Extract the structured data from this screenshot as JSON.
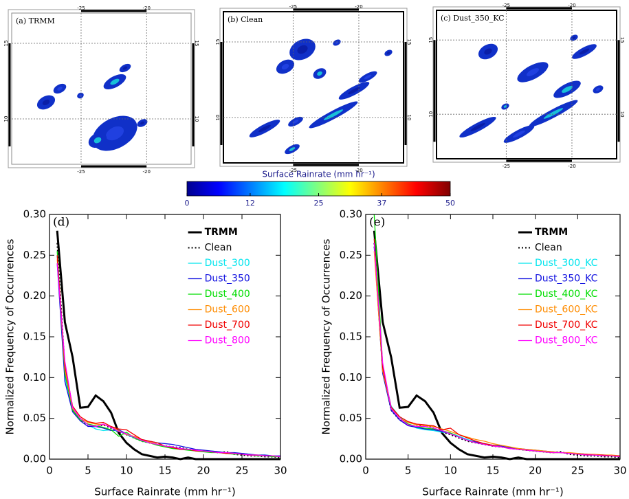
{
  "maps": [
    {
      "label": "(a) TRMM",
      "xlim": [
        -30.3,
        -16.6
      ],
      "ylim": [
        7,
        17
      ],
      "xticks": [
        -25,
        -20
      ],
      "yticks": [
        10,
        15
      ]
    },
    {
      "label": "(b) Clean",
      "xlim": [
        -30.3,
        -16.6
      ],
      "ylim": [
        7,
        17
      ],
      "xticks": [
        -25,
        -20
      ],
      "yticks": [
        10,
        15
      ]
    },
    {
      "label": "(c) Dust_350_KC",
      "xlim": [
        -30.3,
        -16.6
      ],
      "ylim": [
        7,
        17
      ],
      "xticks": [
        -25,
        -20
      ],
      "yticks": [
        10,
        15
      ]
    }
  ],
  "colorbar": {
    "label": "Surface Rainrate (mm hr⁻¹)",
    "lim": [
      0,
      50
    ],
    "ticks": [
      0,
      12,
      25,
      37,
      50
    ]
  },
  "chart_data": [
    {
      "type": "line",
      "panel": "(d)",
      "xlabel": "Surface Rainrate (mm hr⁻¹)",
      "ylabel": "Normalized Frequency of Occurrences",
      "xlim": [
        0,
        30
      ],
      "ylim": [
        0,
        0.3
      ],
      "xticks": [
        0,
        5,
        10,
        15,
        20,
        25,
        30
      ],
      "yticks": [
        {
          "value": 0,
          "label": "0.00"
        },
        {
          "value": 0.05,
          "label": "0.05"
        },
        {
          "value": 0.1,
          "label": "0.10"
        },
        {
          "value": 0.15,
          "label": "0.15"
        },
        {
          "value": 0.2,
          "label": "0.20"
        },
        {
          "value": 0.25,
          "label": "0.25"
        },
        {
          "value": 0.3,
          "label": "0.30"
        }
      ],
      "legend": "upper right",
      "x": [
        1,
        2,
        3,
        4,
        5,
        6,
        7,
        8,
        9,
        10,
        11,
        12,
        13,
        14,
        15,
        16,
        17,
        18,
        19,
        20,
        21,
        22,
        23,
        24,
        25,
        26,
        27,
        28,
        29,
        30
      ],
      "series": [
        {
          "name": "TRMM",
          "color": "#000000",
          "linewidth": 3,
          "style": "solid",
          "values": [
            0.28,
            0.168,
            0.125,
            0.063,
            0.064,
            0.078,
            0.071,
            0.057,
            0.032,
            0.02,
            0.012,
            0.006,
            0.004,
            0.002,
            0.003,
            0.002,
            0,
            0.002,
            0,
            0,
            0,
            0,
            0,
            0,
            0,
            0,
            0,
            0,
            0,
            0
          ]
        },
        {
          "name": "Clean",
          "color": "#000000",
          "linewidth": 2,
          "style": "dotted",
          "values": [
            0.265,
            0.11,
            0.06,
            0.048,
            0.042,
            0.04,
            0.042,
            0.038,
            0.033,
            0.03,
            0.026,
            0.022,
            0.02,
            0.018,
            0.016,
            0.015,
            0.014,
            0.012,
            0.011,
            0.01,
            0.009,
            0.008,
            0.009,
            0.006,
            0.005,
            0.004,
            0.004,
            0.003,
            0.003,
            0.002
          ]
        },
        {
          "name": "Dust_300",
          "color": "#00e5ee",
          "linewidth": 1.3,
          "style": "solid",
          "values": [
            0.25,
            0.1,
            0.062,
            0.05,
            0.042,
            0.037,
            0.035,
            0.036,
            0.034,
            0.03,
            0.026,
            0.022,
            0.02,
            0.018,
            0.016,
            0.015,
            0.013,
            0.012,
            0.011,
            0.01,
            0.01,
            0.009,
            0.008,
            0.007,
            0.007,
            0.006,
            0.005,
            0.005,
            0.004,
            0.003
          ]
        },
        {
          "name": "Dust_350",
          "color": "#1010e0",
          "linewidth": 1.3,
          "style": "solid",
          "values": [
            0.24,
            0.095,
            0.058,
            0.047,
            0.04,
            0.04,
            0.038,
            0.035,
            0.036,
            0.031,
            0.027,
            0.024,
            0.022,
            0.02,
            0.019,
            0.018,
            0.016,
            0.014,
            0.012,
            0.011,
            0.01,
            0.009,
            0.008,
            0.008,
            0.007,
            0.006,
            0.005,
            0.005,
            0.004,
            0.004
          ]
        },
        {
          "name": "Dust_400",
          "color": "#00dd00",
          "linewidth": 1.3,
          "style": "solid",
          "values": [
            0.255,
            0.105,
            0.06,
            0.048,
            0.043,
            0.041,
            0.039,
            0.036,
            0.028,
            0.033,
            0.026,
            0.022,
            0.02,
            0.017,
            0.015,
            0.013,
            0.012,
            0.011,
            0.01,
            0.009,
            0.008,
            0.008,
            0.007,
            0.006,
            0.006,
            0.005,
            0.004,
            0.004,
            0.003,
            0.003
          ]
        },
        {
          "name": "Dust_600",
          "color": "#ff8c00",
          "linewidth": 1.3,
          "style": "solid",
          "values": [
            0.245,
            0.11,
            0.062,
            0.05,
            0.045,
            0.043,
            0.042,
            0.04,
            0.035,
            0.03,
            0.028,
            0.024,
            0.021,
            0.018,
            0.016,
            0.014,
            0.013,
            0.012,
            0.011,
            0.01,
            0.009,
            0.008,
            0.008,
            0.007,
            0.006,
            0.005,
            0.005,
            0.004,
            0.004,
            0.003
          ]
        },
        {
          "name": "Dust_700",
          "color": "#f00000",
          "linewidth": 1.3,
          "style": "solid",
          "values": [
            0.25,
            0.115,
            0.065,
            0.052,
            0.046,
            0.044,
            0.045,
            0.04,
            0.037,
            0.036,
            0.03,
            0.024,
            0.022,
            0.02,
            0.016,
            0.014,
            0.012,
            0.012,
            0.01,
            0.01,
            0.009,
            0.008,
            0.007,
            0.007,
            0.006,
            0.005,
            0.005,
            0.004,
            0.004,
            0.003
          ]
        },
        {
          "name": "Dust_800",
          "color": "#ff00ff",
          "linewidth": 1.3,
          "style": "solid",
          "values": [
            0.24,
            0.12,
            0.063,
            0.05,
            0.042,
            0.04,
            0.043,
            0.039,
            0.034,
            0.031,
            0.027,
            0.023,
            0.02,
            0.018,
            0.016,
            0.015,
            0.013,
            0.012,
            0.011,
            0.01,
            0.009,
            0.008,
            0.008,
            0.007,
            0.006,
            0.005,
            0.005,
            0.004,
            0.004,
            0.003
          ]
        }
      ]
    },
    {
      "type": "line",
      "panel": "(e)",
      "xlabel": "Surface Rainrate (mm hr⁻¹)",
      "ylabel": "Normalized Frequency of Occurrences",
      "xlim": [
        0,
        30
      ],
      "ylim": [
        0,
        0.3
      ],
      "xticks": [
        0,
        5,
        10,
        15,
        20,
        25,
        30
      ],
      "yticks": [
        {
          "value": 0,
          "label": "0.00"
        },
        {
          "value": 0.05,
          "label": "0.05"
        },
        {
          "value": 0.1,
          "label": "0.10"
        },
        {
          "value": 0.15,
          "label": "0.15"
        },
        {
          "value": 0.2,
          "label": "0.20"
        },
        {
          "value": 0.25,
          "label": "0.25"
        },
        {
          "value": 0.3,
          "label": "0.30"
        }
      ],
      "legend": "upper right",
      "x": [
        1,
        2,
        3,
        4,
        5,
        6,
        7,
        8,
        9,
        10,
        11,
        12,
        13,
        14,
        15,
        16,
        17,
        18,
        19,
        20,
        21,
        22,
        23,
        24,
        25,
        26,
        27,
        28,
        29,
        30
      ],
      "series": [
        {
          "name": "TRMM",
          "color": "#000000",
          "linewidth": 3,
          "style": "solid",
          "values": [
            0.28,
            0.168,
            0.125,
            0.063,
            0.064,
            0.078,
            0.071,
            0.057,
            0.032,
            0.02,
            0.012,
            0.006,
            0.004,
            0.002,
            0.003,
            0.002,
            0,
            0.002,
            0,
            0,
            0,
            0,
            0,
            0,
            0,
            0,
            0,
            0,
            0,
            0
          ]
        },
        {
          "name": "Clean",
          "color": "#000000",
          "linewidth": 2,
          "style": "dotted",
          "values": [
            0.265,
            0.11,
            0.06,
            0.048,
            0.042,
            0.04,
            0.042,
            0.038,
            0.033,
            0.03,
            0.026,
            0.022,
            0.02,
            0.018,
            0.016,
            0.015,
            0.014,
            0.012,
            0.011,
            0.01,
            0.009,
            0.008,
            0.009,
            0.006,
            0.005,
            0.004,
            0.004,
            0.003,
            0.003,
            0.002
          ]
        },
        {
          "name": "Dust_300_KC",
          "color": "#00e5ee",
          "linewidth": 1.3,
          "style": "solid",
          "values": [
            0.27,
            0.11,
            0.065,
            0.052,
            0.043,
            0.038,
            0.036,
            0.035,
            0.033,
            0.032,
            0.028,
            0.024,
            0.021,
            0.019,
            0.017,
            0.015,
            0.014,
            0.012,
            0.011,
            0.01,
            0.009,
            0.009,
            0.008,
            0.007,
            0.006,
            0.006,
            0.005,
            0.004,
            0.004,
            0.003
          ]
        },
        {
          "name": "Dust_350_KC",
          "color": "#1010e0",
          "linewidth": 1.3,
          "style": "solid",
          "values": [
            0.26,
            0.105,
            0.06,
            0.048,
            0.041,
            0.039,
            0.037,
            0.036,
            0.034,
            0.031,
            0.027,
            0.023,
            0.021,
            0.019,
            0.017,
            0.016,
            0.014,
            0.013,
            0.012,
            0.011,
            0.01,
            0.009,
            0.008,
            0.007,
            0.007,
            0.006,
            0.005,
            0.005,
            0.004,
            0.004
          ]
        },
        {
          "name": "Dust_400_KC",
          "color": "#00dd00",
          "linewidth": 1.3,
          "style": "solid",
          "values": [
            0.3,
            0.115,
            0.062,
            0.05,
            0.043,
            0.04,
            0.038,
            0.037,
            0.035,
            0.032,
            0.027,
            0.023,
            0.02,
            0.018,
            0.016,
            0.015,
            0.013,
            0.012,
            0.011,
            0.01,
            0.009,
            0.008,
            0.008,
            0.007,
            0.006,
            0.005,
            0.005,
            0.004,
            0.004,
            0.003
          ]
        },
        {
          "name": "Dust_600_KC",
          "color": "#ff8c00",
          "linewidth": 1.3,
          "style": "solid",
          "values": [
            0.255,
            0.108,
            0.063,
            0.05,
            0.045,
            0.042,
            0.041,
            0.04,
            0.037,
            0.034,
            0.03,
            0.027,
            0.024,
            0.022,
            0.019,
            0.017,
            0.015,
            0.013,
            0.012,
            0.011,
            0.01,
            0.009,
            0.008,
            0.008,
            0.007,
            0.006,
            0.006,
            0.005,
            0.005,
            0.004
          ]
        },
        {
          "name": "Dust_700_KC",
          "color": "#f00000",
          "linewidth": 1.3,
          "style": "solid",
          "values": [
            0.27,
            0.112,
            0.064,
            0.052,
            0.046,
            0.043,
            0.042,
            0.041,
            0.036,
            0.038,
            0.03,
            0.026,
            0.022,
            0.019,
            0.017,
            0.015,
            0.013,
            0.012,
            0.011,
            0.01,
            0.009,
            0.008,
            0.008,
            0.007,
            0.006,
            0.006,
            0.005,
            0.005,
            0.004,
            0.004
          ]
        },
        {
          "name": "Dust_800_KC",
          "color": "#ff00ff",
          "linewidth": 1.3,
          "style": "solid",
          "values": [
            0.265,
            0.118,
            0.062,
            0.05,
            0.042,
            0.04,
            0.04,
            0.038,
            0.035,
            0.031,
            0.027,
            0.023,
            0.02,
            0.018,
            0.016,
            0.015,
            0.013,
            0.012,
            0.011,
            0.01,
            0.009,
            0.008,
            0.008,
            0.007,
            0.006,
            0.005,
            0.005,
            0.004,
            0.004,
            0.003
          ]
        }
      ]
    }
  ]
}
